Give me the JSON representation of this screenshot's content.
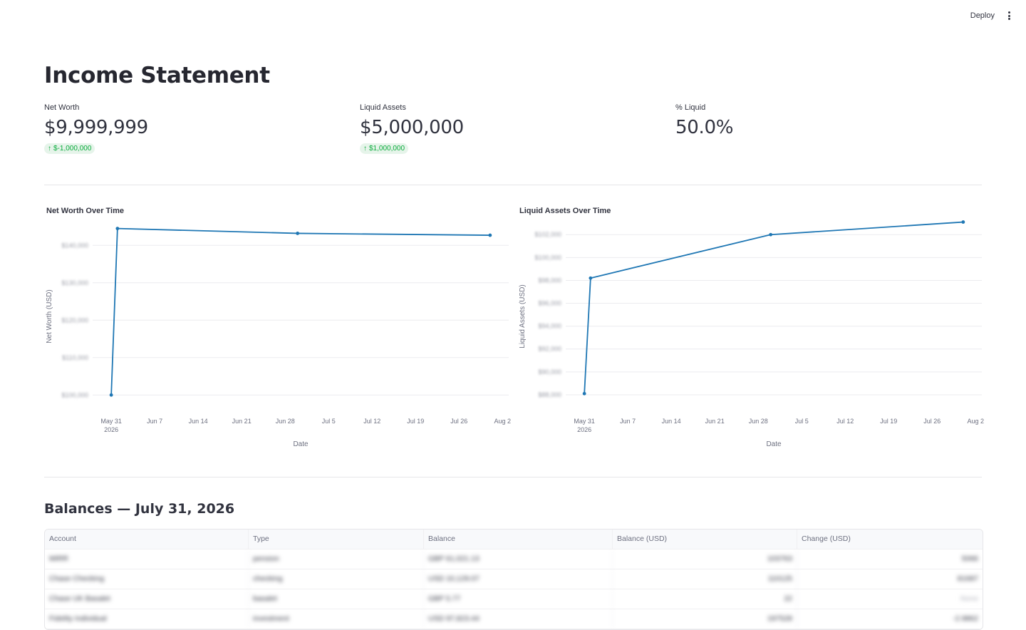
{
  "toolbar": {
    "deploy_label": "Deploy"
  },
  "page": {
    "title": "Income Statement"
  },
  "metrics": [
    {
      "label": "Net Worth",
      "value": "$9,999,999",
      "delta": "$-1,000,000",
      "delta_direction": "up"
    },
    {
      "label": "Liquid Assets",
      "value": "$5,000,000",
      "delta": "$1,000,000",
      "delta_direction": "up"
    },
    {
      "label": "% Liquid",
      "value": "50.0%"
    }
  ],
  "colors": {
    "line": "#1f77b4",
    "delta_bg": "#e6f4ea",
    "delta_fg": "#09ab3b"
  },
  "chart_data": [
    {
      "type": "line",
      "title": "Net Worth Over Time",
      "xlabel": "Date",
      "ylabel": "Net Worth (USD)",
      "x_ticks": [
        {
          "label": "May 31",
          "sub": "2026"
        },
        {
          "label": "Jun 7"
        },
        {
          "label": "Jun 14"
        },
        {
          "label": "Jun 21"
        },
        {
          "label": "Jun 28"
        },
        {
          "label": "Jul 5"
        },
        {
          "label": "Jul 12"
        },
        {
          "label": "Jul 19"
        },
        {
          "label": "Jul 26"
        },
        {
          "label": "Aug 2"
        }
      ],
      "x_range": [
        "2026-05-28",
        "2026-08-03"
      ],
      "y_ticks": [
        "$140,000",
        "$130,000",
        "$120,000",
        "$110,000",
        "$100,000"
      ],
      "y_tick_values": [
        140000,
        130000,
        120000,
        110000,
        100000
      ],
      "ylim": [
        97000,
        145000
      ],
      "grid": true,
      "y_ticks_obscured": true,
      "series": [
        {
          "x": [
            "2026-05-31",
            "2026-06-01",
            "2026-06-30",
            "2026-07-31"
          ],
          "y": [
            100000,
            144500,
            143200,
            142700
          ]
        }
      ]
    },
    {
      "type": "line",
      "title": "Liquid Assets Over Time",
      "xlabel": "Date",
      "ylabel": "Liquid Assets (USD)",
      "x_ticks": [
        {
          "label": "May 31",
          "sub": "2026"
        },
        {
          "label": "Jun 7"
        },
        {
          "label": "Jun 14"
        },
        {
          "label": "Jun 21"
        },
        {
          "label": "Jun 28"
        },
        {
          "label": "Jul 5"
        },
        {
          "label": "Jul 12"
        },
        {
          "label": "Jul 19"
        },
        {
          "label": "Jul 26"
        },
        {
          "label": "Aug 2"
        }
      ],
      "x_range": [
        "2026-05-28",
        "2026-08-03"
      ],
      "y_ticks": [
        "$102,000",
        "$100,000",
        "$98,000",
        "$96,000",
        "$94,000",
        "$92,000",
        "$90,000",
        "$88,000"
      ],
      "y_tick_values": [
        102000,
        100000,
        98000,
        96000,
        94000,
        92000,
        90000,
        88000
      ],
      "ylim": [
        87000,
        102700
      ],
      "grid": true,
      "y_ticks_obscured": true,
      "series": [
        {
          "x": [
            "2026-05-31",
            "2026-06-01",
            "2026-06-30",
            "2026-07-31"
          ],
          "y": [
            88100,
            98200,
            102000,
            103100
          ]
        }
      ]
    }
  ],
  "balances": {
    "heading": "Balances — July 31, 2026",
    "columns": [
      "Account",
      "Type",
      "Balance",
      "Balance (USD)",
      "Change (USD)"
    ],
    "rows": [
      [
        "MIRR",
        "pension",
        "GBP 61,021.13",
        "103763",
        "5066"
      ],
      [
        "Chase Checking",
        "checking",
        "USD 10,129.07",
        "110125",
        "81687"
      ],
      [
        "Chase UK Basalet",
        "basalet",
        "GBP 5.77",
        "22",
        "None"
      ],
      [
        "Fidelity Individual",
        "investment",
        "USD 97,823.44",
        "197528",
        "-2.9862"
      ]
    ]
  }
}
